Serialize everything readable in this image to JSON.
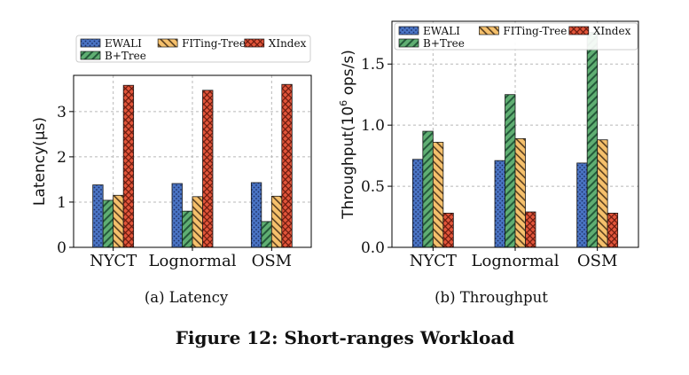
{
  "chart_data": [
    {
      "type": "bar",
      "subcaption": "(a)  Latency",
      "ylabel": "Latency(μs)",
      "categories": [
        "NYCT",
        "Lognormal",
        "OSM"
      ],
      "ylim": [
        0,
        3.8
      ],
      "yticks": [
        0,
        1,
        2,
        3
      ],
      "grid": true,
      "legend_position": "top",
      "series": [
        {
          "name": "EWALI",
          "values": [
            1.38,
            1.41,
            1.43
          ]
        },
        {
          "name": "B+Tree",
          "values": [
            1.04,
            0.8,
            0.57
          ]
        },
        {
          "name": "FITing-Tree",
          "values": [
            1.15,
            1.12,
            1.13
          ]
        },
        {
          "name": "XIndex",
          "values": [
            3.58,
            3.47,
            3.6
          ]
        }
      ]
    },
    {
      "type": "bar",
      "subcaption": "(b)  Throughput",
      "ylabel_main": "Throughput(10",
      "ylabel_sup": "6",
      "ylabel_tail": " ops/s)",
      "categories": [
        "NYCT",
        "Lognormal",
        "OSM"
      ],
      "ylim": [
        0,
        1.85
      ],
      "yticks": [
        0.0,
        0.5,
        1.0,
        1.5
      ],
      "ytick_labels": [
        "0.0",
        "0.5",
        "1.0",
        "1.5"
      ],
      "grid": true,
      "legend_position": "top",
      "series": [
        {
          "name": "EWALI",
          "values": [
            0.72,
            0.71,
            0.69
          ]
        },
        {
          "name": "B+Tree",
          "values": [
            0.95,
            1.25,
            1.76
          ]
        },
        {
          "name": "FITing-Tree",
          "values": [
            0.86,
            0.89,
            0.88
          ]
        },
        {
          "name": "XIndex",
          "values": [
            0.28,
            0.29,
            0.28
          ]
        }
      ]
    }
  ],
  "figure_caption": "Figure 12: Short-ranges Workload",
  "colors": {
    "EWALI": "#4a74c4",
    "B+Tree": "#5fae72",
    "FITing-Tree": "#f5c06c",
    "XIndex": "#e2553a"
  }
}
